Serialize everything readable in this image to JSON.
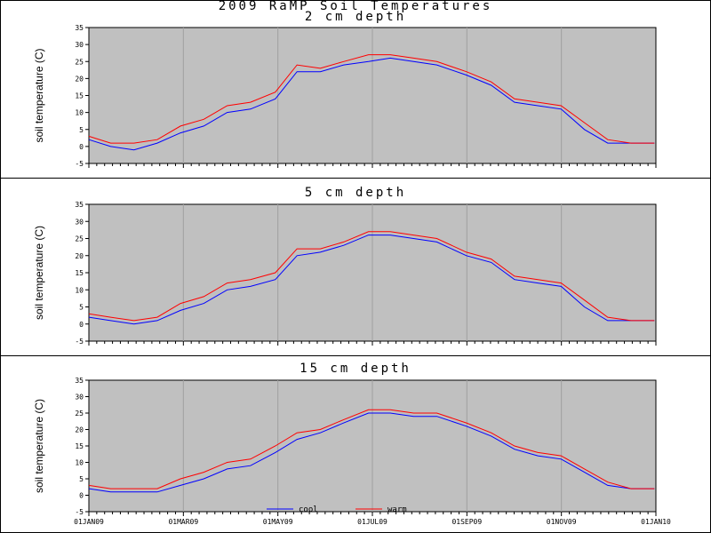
{
  "title": "2009 RaMP Soil Temperatures",
  "colors": {
    "cool": "#0000ff",
    "warm": "#ff0000",
    "plot_bg": "#c0c0c0",
    "grid": "#a0a0a0"
  },
  "legend": [
    {
      "label": "cool",
      "color": "#0000ff"
    },
    {
      "label": "warm",
      "color": "#ff0000"
    }
  ],
  "chart_data": [
    {
      "type": "line",
      "title": "2 cm depth",
      "ylabel": "soil temperature (C)",
      "ylim": [
        -5,
        35
      ],
      "yticks": [
        -5,
        0,
        5,
        10,
        15,
        20,
        25,
        30,
        35
      ],
      "xticks": [
        "01JAN09",
        "01MAR09",
        "01MAY09",
        "01JUL09",
        "01SEP09",
        "01NOV09",
        "01JAN10"
      ],
      "x_unit": "day of year",
      "xlim": [
        1,
        366
      ],
      "x": [
        1,
        15,
        30,
        45,
        60,
        75,
        90,
        105,
        121,
        135,
        150,
        165,
        181,
        195,
        210,
        225,
        244,
        260,
        275,
        290,
        305,
        320,
        335,
        350,
        365
      ],
      "series": [
        {
          "name": "cool",
          "values": [
            2,
            0,
            -1,
            1,
            4,
            6,
            10,
            11,
            14,
            22,
            22,
            24,
            25,
            26,
            25,
            24,
            21,
            18,
            13,
            12,
            11,
            5,
            1,
            1,
            1
          ]
        },
        {
          "name": "warm",
          "values": [
            3,
            1,
            1,
            2,
            6,
            8,
            12,
            13,
            16,
            24,
            23,
            25,
            27,
            27,
            26,
            25,
            22,
            19,
            14,
            13,
            12,
            7,
            2,
            1,
            1
          ]
        }
      ]
    },
    {
      "type": "line",
      "title": "5 cm depth",
      "ylabel": "soil temperature (C)",
      "ylim": [
        -5,
        35
      ],
      "yticks": [
        -5,
        0,
        5,
        10,
        15,
        20,
        25,
        30,
        35
      ],
      "xticks": [
        "01JAN09",
        "01MAR09",
        "01MAY09",
        "01JUL09",
        "01SEP09",
        "01NOV09",
        "01JAN10"
      ],
      "x_unit": "day of year",
      "xlim": [
        1,
        366
      ],
      "x": [
        1,
        15,
        30,
        45,
        60,
        75,
        90,
        105,
        121,
        135,
        150,
        165,
        181,
        195,
        210,
        225,
        244,
        260,
        275,
        290,
        305,
        320,
        335,
        350,
        365
      ],
      "series": [
        {
          "name": "cool",
          "values": [
            2,
            1,
            0,
            1,
            4,
            6,
            10,
            11,
            13,
            20,
            21,
            23,
            26,
            26,
            25,
            24,
            20,
            18,
            13,
            12,
            11,
            5,
            1,
            1,
            1
          ]
        },
        {
          "name": "warm",
          "values": [
            3,
            2,
            1,
            2,
            6,
            8,
            12,
            13,
            15,
            22,
            22,
            24,
            27,
            27,
            26,
            25,
            21,
            19,
            14,
            13,
            12,
            7,
            2,
            1,
            1
          ]
        }
      ]
    },
    {
      "type": "line",
      "title": "15 cm depth",
      "ylabel": "soil temperature (C)",
      "ylim": [
        -5,
        35
      ],
      "yticks": [
        -5,
        0,
        5,
        10,
        15,
        20,
        25,
        30,
        35
      ],
      "xticks": [
        "01JAN09",
        "01MAR09",
        "01MAY09",
        "01JUL09",
        "01SEP09",
        "01NOV09",
        "01JAN10"
      ],
      "x_unit": "day of year",
      "xlim": [
        1,
        366
      ],
      "x": [
        1,
        15,
        30,
        45,
        60,
        75,
        90,
        105,
        121,
        135,
        150,
        165,
        181,
        195,
        210,
        225,
        244,
        260,
        275,
        290,
        305,
        320,
        335,
        350,
        365
      ],
      "series": [
        {
          "name": "cool",
          "values": [
            2,
            1,
            1,
            1,
            3,
            5,
            8,
            9,
            13,
            17,
            19,
            22,
            25,
            25,
            24,
            24,
            21,
            18,
            14,
            12,
            11,
            7,
            3,
            2,
            2
          ]
        },
        {
          "name": "warm",
          "values": [
            3,
            2,
            2,
            2,
            5,
            7,
            10,
            11,
            15,
            19,
            20,
            23,
            26,
            26,
            25,
            25,
            22,
            19,
            15,
            13,
            12,
            8,
            4,
            2,
            2
          ]
        }
      ]
    }
  ]
}
